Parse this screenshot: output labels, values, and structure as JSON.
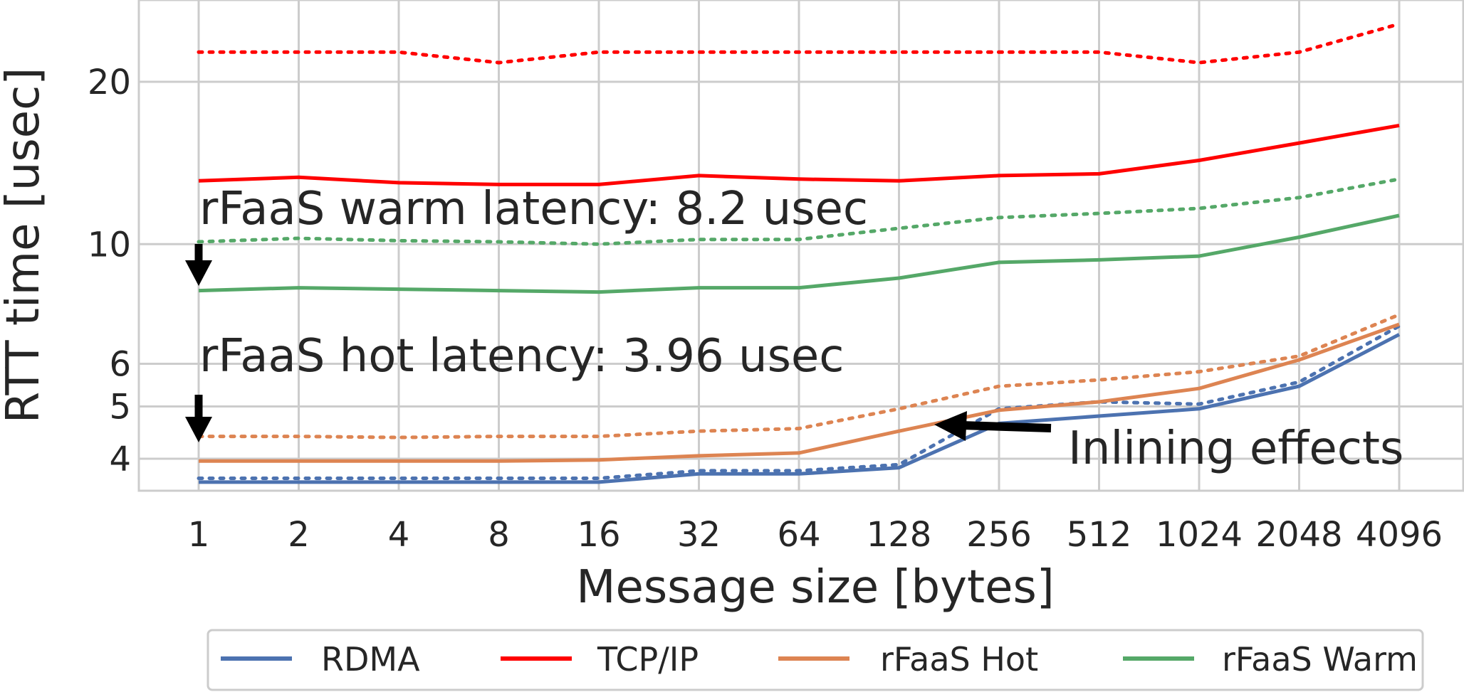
{
  "chart_data": {
    "type": "line",
    "xlabel": "Message size [bytes]",
    "ylabel": "RTT time [usec]",
    "y_scale": "log",
    "ylim": [
      3.4,
      28
    ],
    "grid": true,
    "categories": [
      "1",
      "2",
      "4",
      "8",
      "16",
      "32",
      "64",
      "128",
      "256",
      "512",
      "1024",
      "2048",
      "4096"
    ],
    "y_ticks": [
      {
        "value": 4,
        "label": "4"
      },
      {
        "value": 5,
        "label": "5"
      },
      {
        "value": 6,
        "label": "6"
      },
      {
        "value": 10,
        "label": "10"
      },
      {
        "value": 20,
        "label": "20"
      }
    ],
    "series": [
      {
        "name": "RDMA",
        "color": "#4c72b0",
        "style": "solid",
        "values": [
          3.62,
          3.62,
          3.62,
          3.62,
          3.62,
          3.75,
          3.75,
          3.85,
          4.65,
          4.8,
          4.95,
          5.45,
          6.8
        ]
      },
      {
        "name": "",
        "color": "#4c72b0",
        "style": "dotted",
        "values": [
          3.68,
          3.68,
          3.68,
          3.68,
          3.68,
          3.8,
          3.8,
          3.9,
          4.95,
          5.1,
          5.05,
          5.55,
          7.05
        ]
      },
      {
        "name": "TCP/IP",
        "color": "#ff0000",
        "style": "solid",
        "values": [
          13.1,
          13.3,
          13.0,
          12.9,
          12.9,
          13.4,
          13.2,
          13.1,
          13.4,
          13.5,
          14.3,
          15.4,
          16.6
        ]
      },
      {
        "name": "",
        "color": "#ff0000",
        "style": "dotted",
        "values": [
          22.7,
          22.7,
          22.7,
          21.7,
          22.7,
          22.7,
          22.7,
          22.7,
          22.7,
          22.7,
          21.7,
          22.7,
          25.6
        ]
      },
      {
        "name": "rFaaS Hot",
        "color": "#dd8452",
        "style": "solid",
        "values": [
          3.96,
          3.96,
          3.96,
          3.96,
          3.98,
          4.05,
          4.1,
          4.5,
          4.92,
          5.1,
          5.4,
          6.1,
          7.1
        ]
      },
      {
        "name": "",
        "color": "#dd8452",
        "style": "dotted",
        "values": [
          4.4,
          4.4,
          4.38,
          4.4,
          4.4,
          4.5,
          4.55,
          4.95,
          5.45,
          5.6,
          5.8,
          6.2,
          7.4
        ]
      },
      {
        "name": "rFaaS Warm",
        "color": "#55a868",
        "style": "solid",
        "values": [
          8.2,
          8.3,
          8.25,
          8.2,
          8.15,
          8.3,
          8.3,
          8.65,
          9.25,
          9.35,
          9.5,
          10.3,
          11.3
        ]
      },
      {
        "name": "",
        "color": "#55a868",
        "style": "dotted",
        "values": [
          10.1,
          10.25,
          10.15,
          10.1,
          10.0,
          10.2,
          10.2,
          10.7,
          11.2,
          11.4,
          11.65,
          12.2,
          13.2
        ]
      }
    ],
    "annotations": [
      {
        "text": "rFaaS warm latency: 8.2 usec",
        "arrow_to": {
          "x": "1",
          "y": 8.2
        }
      },
      {
        "text": "rFaaS hot latency: 3.96 usec",
        "arrow_to": {
          "x": "1",
          "y": 3.96
        }
      },
      {
        "text": "Inlining effects",
        "arrow_to": {
          "x": "128-256",
          "y": 4.6
        }
      }
    ],
    "legend": {
      "placement": "bottom-center",
      "entries": [
        {
          "name": "RDMA",
          "color": "#4c72b0"
        },
        {
          "name": "TCP/IP",
          "color": "#ff0000"
        },
        {
          "name": "rFaaS Hot",
          "color": "#dd8452"
        },
        {
          "name": "rFaaS Warm",
          "color": "#55a868"
        }
      ]
    }
  }
}
